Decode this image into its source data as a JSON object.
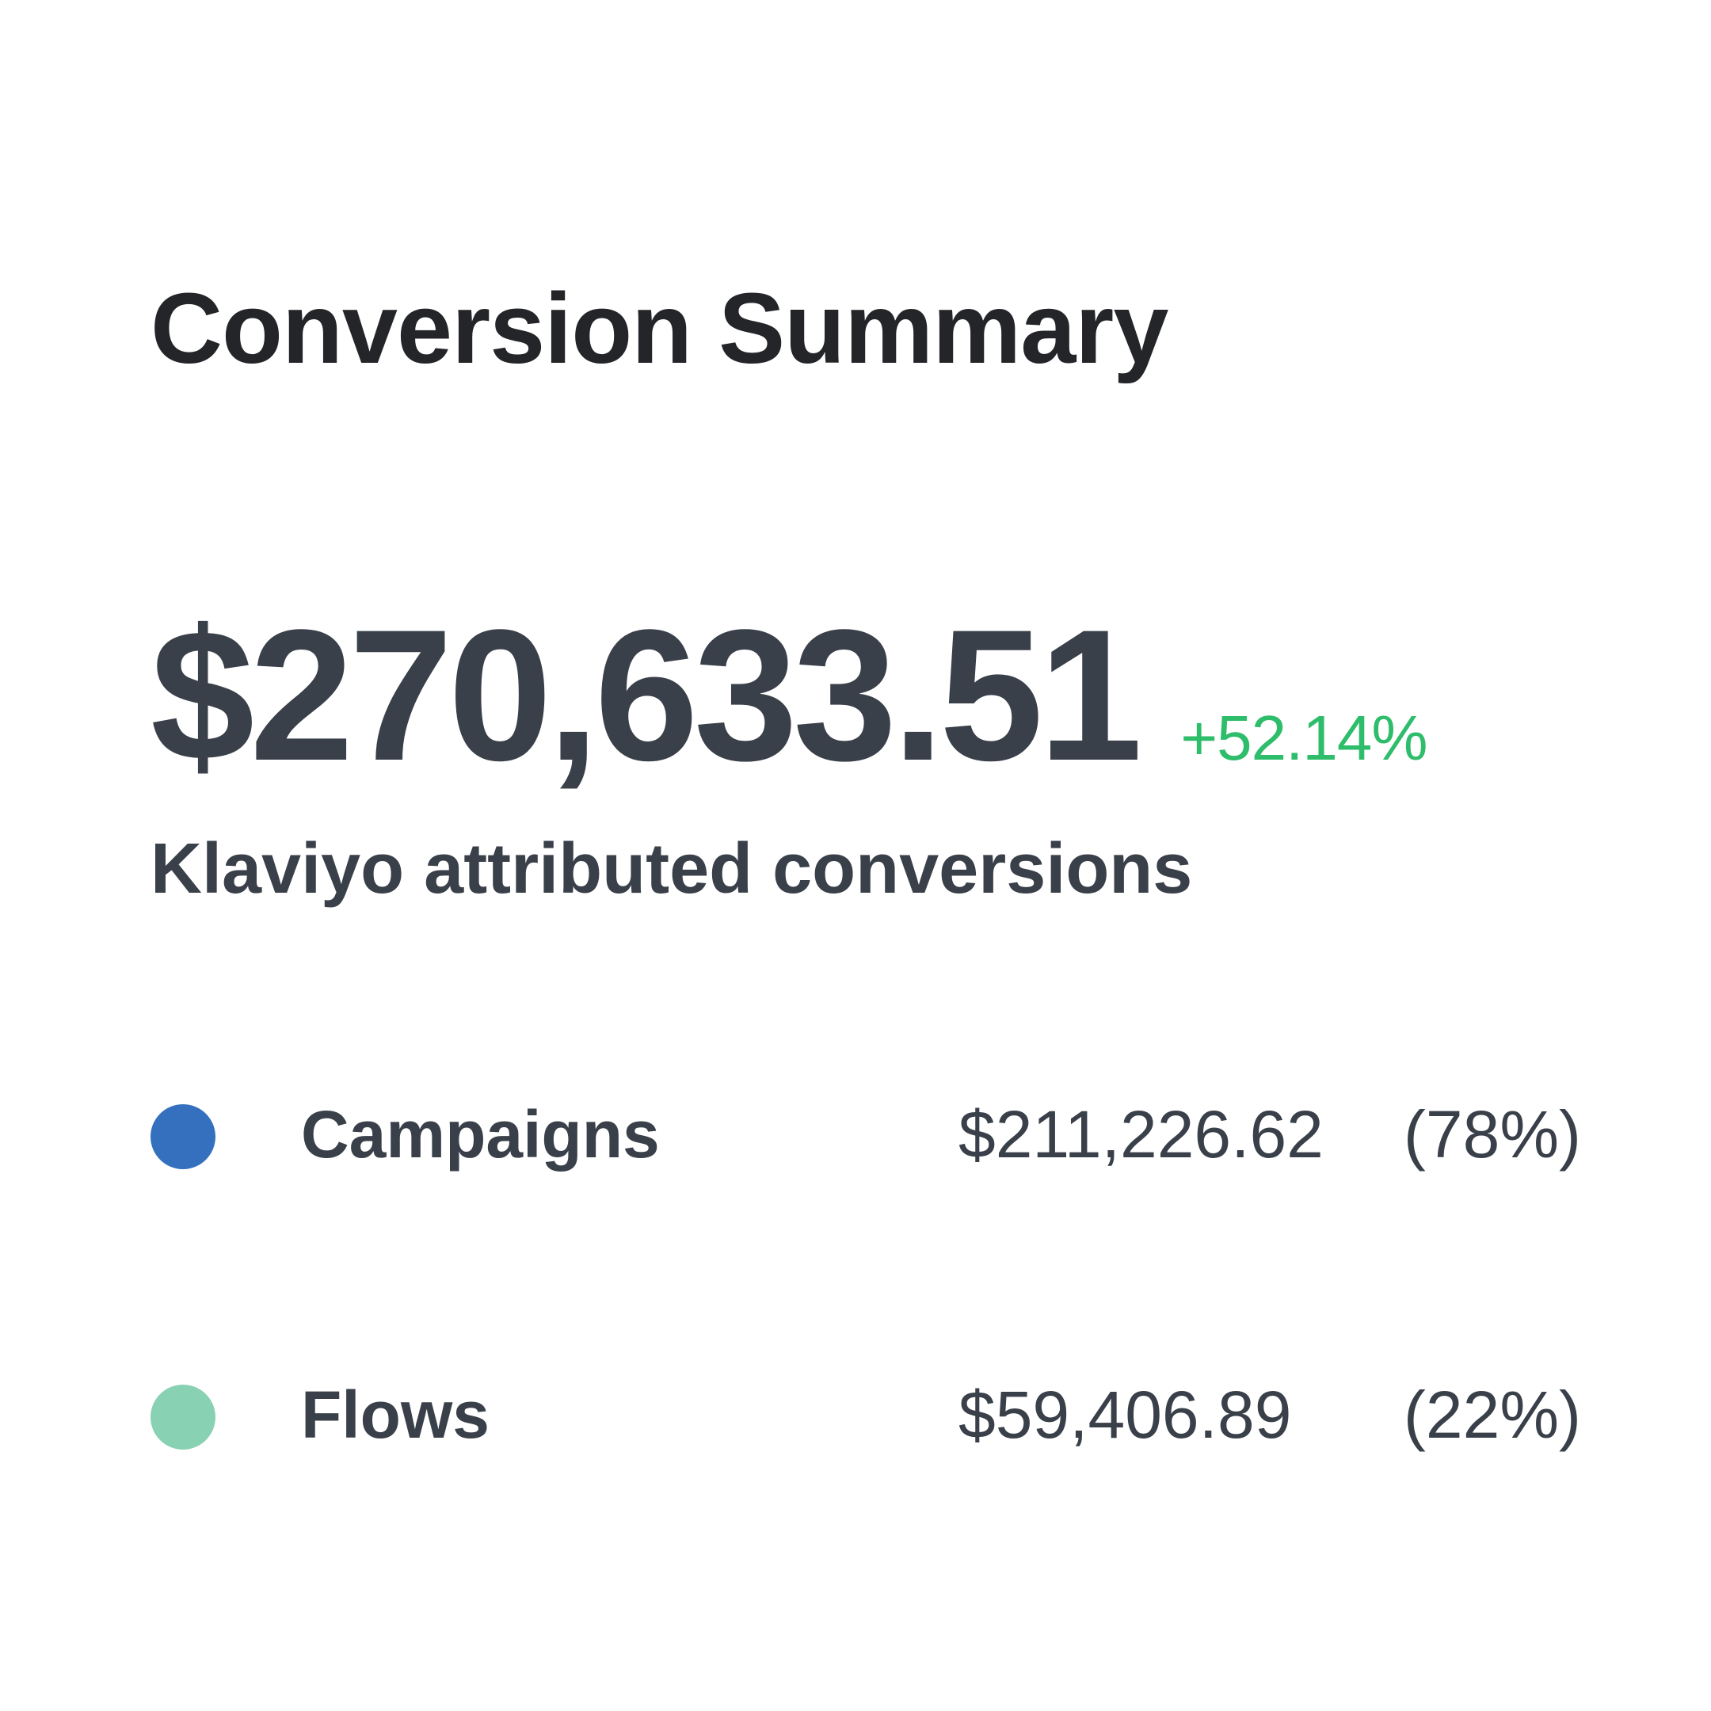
{
  "summary": {
    "title": "Conversion Summary",
    "total": "$270,633.51",
    "change": "+52.14%",
    "change_color": "#2ebd6b",
    "subtitle": "Klaviyo attributed conversions"
  },
  "breakdown": [
    {
      "label": "Campaigns",
      "value": "$211,226.62",
      "percent": "(78%)",
      "color": "#3470bd"
    },
    {
      "label": "Flows",
      "value": "$59,406.89",
      "percent": "(22%)",
      "color": "#88d1b2"
    }
  ]
}
